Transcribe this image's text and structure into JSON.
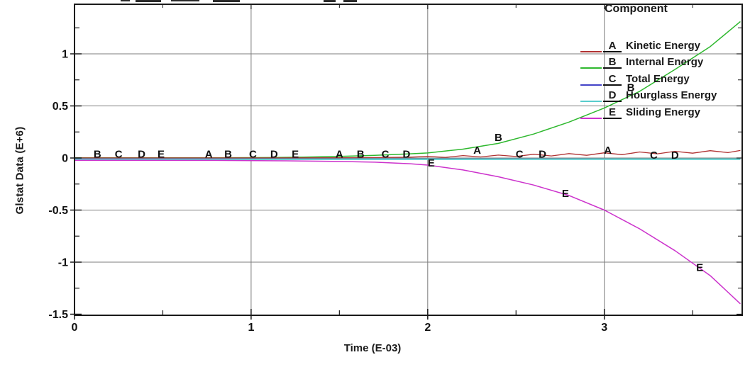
{
  "legend": {
    "header": "Component",
    "items": [
      {
        "letter": "A",
        "label": "Kinetic Energy",
        "color": "#b03232"
      },
      {
        "letter": "B",
        "label": "Internal Energy",
        "color": "#2eb82e"
      },
      {
        "letter": "C",
        "label": "Total Energy",
        "color": "#4343c8"
      },
      {
        "letter": "D",
        "label": "Hourglass Energy",
        "color": "#58cdcd"
      },
      {
        "letter": "E",
        "label": "Sliding Energy",
        "color": "#cc33cc"
      }
    ]
  },
  "chart_data": {
    "type": "line",
    "xlabel": "Time (E-03)",
    "ylabel": "Glstat Data (E+6)",
    "xlim": [
      0,
      3.773
    ],
    "ylim": [
      -1.51,
      1.476
    ],
    "grid": true,
    "legend_position": "top-right",
    "x_ticks": [
      {
        "v": 0,
        "label": "0"
      },
      {
        "v": 1,
        "label": "1"
      },
      {
        "v": 2,
        "label": "2"
      },
      {
        "v": 3,
        "label": "3"
      }
    ],
    "x_minor_ticks": [
      0.5,
      1.5,
      2.5,
      3.5
    ],
    "y_ticks": [
      {
        "v": 1,
        "label": "1"
      },
      {
        "v": 0.5,
        "label": "0.5"
      },
      {
        "v": 0,
        "label": "0"
      },
      {
        "v": -0.5,
        "label": "-0.5"
      },
      {
        "v": -1,
        "label": "-1"
      },
      {
        "v": -1.5,
        "label": "-1.5"
      }
    ],
    "y_minor_ticks": [
      1.25,
      0.75,
      0.25,
      -0.25,
      -0.75,
      -1.25
    ],
    "series": [
      {
        "id": "B",
        "name": "Internal Energy",
        "color": "#2eb82e",
        "width": 1.5,
        "points": [
          [
            0,
            0.002
          ],
          [
            0.8,
            0.002
          ],
          [
            1.1,
            0.004
          ],
          [
            1.3,
            0.008
          ],
          [
            1.5,
            0.015
          ],
          [
            1.7,
            0.025
          ],
          [
            1.9,
            0.04
          ],
          [
            2.0,
            0.048
          ],
          [
            2.2,
            0.085
          ],
          [
            2.4,
            0.14
          ],
          [
            2.6,
            0.23
          ],
          [
            2.8,
            0.345
          ],
          [
            3.0,
            0.48
          ],
          [
            3.2,
            0.64
          ],
          [
            3.4,
            0.85
          ],
          [
            3.6,
            1.07
          ],
          [
            3.77,
            1.31
          ]
        ]
      },
      {
        "id": "A",
        "name": "Kinetic Energy",
        "color": "#b03232",
        "width": 1.3,
        "points": [
          [
            0,
            0.001
          ],
          [
            0.5,
            0.001
          ],
          [
            1.0,
            0.001
          ],
          [
            1.5,
            0.002
          ],
          [
            1.7,
            0.004
          ],
          [
            1.9,
            0.008
          ],
          [
            2.0,
            0.015
          ],
          [
            2.1,
            0.006
          ],
          [
            2.2,
            0.023
          ],
          [
            2.3,
            0.01
          ],
          [
            2.4,
            0.028
          ],
          [
            2.5,
            0.014
          ],
          [
            2.6,
            0.036
          ],
          [
            2.7,
            0.02
          ],
          [
            2.8,
            0.042
          ],
          [
            2.9,
            0.026
          ],
          [
            3.0,
            0.05
          ],
          [
            3.1,
            0.032
          ],
          [
            3.2,
            0.058
          ],
          [
            3.3,
            0.04
          ],
          [
            3.4,
            0.064
          ],
          [
            3.5,
            0.046
          ],
          [
            3.6,
            0.07
          ],
          [
            3.7,
            0.052
          ],
          [
            3.77,
            0.072
          ]
        ]
      },
      {
        "id": "C",
        "name": "Total Energy",
        "color": "#4343c8",
        "width": 1.3,
        "points": [
          [
            0,
            -0.008
          ],
          [
            3.77,
            -0.008
          ]
        ]
      },
      {
        "id": "D",
        "name": "Hourglass Energy",
        "color": "#58cdcd",
        "width": 2.2,
        "points": [
          [
            0,
            -0.013
          ],
          [
            3.77,
            -0.011
          ]
        ]
      },
      {
        "id": "E",
        "name": "Sliding Energy",
        "color": "#cc33cc",
        "width": 1.5,
        "points": [
          [
            0,
            -0.022
          ],
          [
            0.8,
            -0.023
          ],
          [
            1.2,
            -0.027
          ],
          [
            1.5,
            -0.033
          ],
          [
            1.7,
            -0.04
          ],
          [
            1.9,
            -0.055
          ],
          [
            2.0,
            -0.068
          ],
          [
            2.2,
            -0.115
          ],
          [
            2.4,
            -0.18
          ],
          [
            2.6,
            -0.26
          ],
          [
            2.8,
            -0.36
          ],
          [
            3.0,
            -0.5
          ],
          [
            3.2,
            -0.68
          ],
          [
            3.4,
            -0.89
          ],
          [
            3.6,
            -1.13
          ],
          [
            3.77,
            -1.4
          ]
        ]
      }
    ],
    "curve_labels": [
      {
        "letter": "B",
        "t": 0.13,
        "v": 0.04
      },
      {
        "letter": "C",
        "t": 0.25,
        "v": 0.04
      },
      {
        "letter": "D",
        "t": 0.38,
        "v": 0.04
      },
      {
        "letter": "E",
        "t": 0.49,
        "v": 0.04
      },
      {
        "letter": "A",
        "t": 0.76,
        "v": 0.04
      },
      {
        "letter": "B",
        "t": 0.87,
        "v": 0.04
      },
      {
        "letter": "C",
        "t": 1.01,
        "v": 0.04
      },
      {
        "letter": "D",
        "t": 1.13,
        "v": 0.04
      },
      {
        "letter": "E",
        "t": 1.25,
        "v": 0.04
      },
      {
        "letter": "A",
        "t": 1.5,
        "v": 0.04
      },
      {
        "letter": "B",
        "t": 1.62,
        "v": 0.04
      },
      {
        "letter": "C",
        "t": 1.76,
        "v": 0.04
      },
      {
        "letter": "D",
        "t": 1.88,
        "v": 0.04
      },
      {
        "letter": "E",
        "t": 2.02,
        "v": -0.045
      },
      {
        "letter": "A",
        "t": 2.28,
        "v": 0.075
      },
      {
        "letter": "B",
        "t": 2.4,
        "v": 0.2
      },
      {
        "letter": "C",
        "t": 2.52,
        "v": 0.04
      },
      {
        "letter": "D",
        "t": 2.65,
        "v": 0.04
      },
      {
        "letter": "E",
        "t": 2.78,
        "v": -0.34
      },
      {
        "letter": "A",
        "t": 3.02,
        "v": 0.075
      },
      {
        "letter": "B",
        "t": 3.15,
        "v": 0.68
      },
      {
        "letter": "C",
        "t": 3.28,
        "v": 0.03
      },
      {
        "letter": "D",
        "t": 3.4,
        "v": 0.03
      },
      {
        "letter": "E",
        "t": 3.54,
        "v": -1.05
      }
    ]
  }
}
